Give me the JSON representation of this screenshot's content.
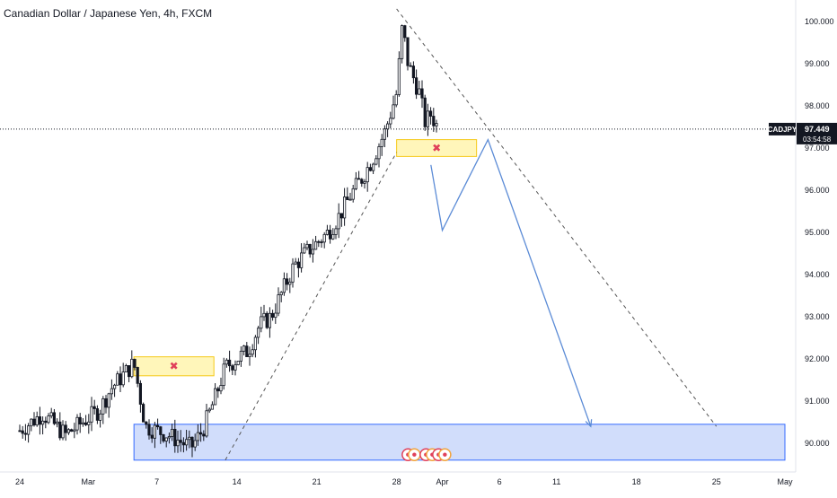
{
  "title": "Canadian Dollar / Japanese Yen, 4h, FXCM",
  "colors": {
    "bull": "#ffffff",
    "bear": "#131722",
    "support_zone_fill": "#cfdcfb",
    "support_zone_border": "#2962ff",
    "resistance_zone_fill": "#fff6b3",
    "resistance_zone_border": "#f5c400",
    "projection_line": "#5b8bd6",
    "trend_line": "#555555",
    "price_line": "#131722",
    "marker": "#e0405a"
  },
  "chart_data": {
    "type": "candlestick",
    "symbol": "CADJPY",
    "timeframe": "4h",
    "source": "FXCM",
    "x_tick_labels": [
      "24",
      "Mar",
      "7",
      "14",
      "21",
      "28",
      "Apr",
      "6",
      "11",
      "18",
      "25",
      "May"
    ],
    "x_tick_dates": [
      "2020-02-24",
      "2020-03-01",
      "2020-03-07",
      "2020-03-14",
      "2020-03-21",
      "2020-03-28",
      "2020-04-01",
      "2020-04-06",
      "2020-04-11",
      "2020-04-18",
      "2020-04-25",
      "2020-05-01"
    ],
    "y_tick_labels": [
      "90.000",
      "91.000",
      "92.000",
      "93.000",
      "94.000",
      "95.000",
      "96.000",
      "97.000",
      "98.000",
      "99.000",
      "100.000"
    ],
    "ylim": [
      89.5,
      100.3
    ],
    "current_price": {
      "symbol": "CADJPY",
      "price": "97.449",
      "countdown": "03:54:58",
      "value": 97.449
    },
    "series_close_path": [
      {
        "date": "2020-02-24",
        "close": 90.3
      },
      {
        "date": "2020-02-26",
        "close": 90.7
      },
      {
        "date": "2020-02-28",
        "close": 90.2
      },
      {
        "date": "2020-03-02",
        "close": 90.8
      },
      {
        "date": "2020-03-03",
        "close": 91.3
      },
      {
        "date": "2020-03-05",
        "close": 91.9
      },
      {
        "date": "2020-03-06",
        "close": 90.4
      },
      {
        "date": "2020-03-08",
        "close": 90.2
      },
      {
        "date": "2020-03-10",
        "close": 89.9
      },
      {
        "date": "2020-03-11",
        "close": 90.3
      },
      {
        "date": "2020-03-12",
        "close": 91.0
      },
      {
        "date": "2020-03-13",
        "close": 91.8
      },
      {
        "date": "2020-03-15",
        "close": 92.2
      },
      {
        "date": "2020-03-16",
        "close": 92.8
      },
      {
        "date": "2020-03-17",
        "close": 93.0
      },
      {
        "date": "2020-03-18",
        "close": 93.6
      },
      {
        "date": "2020-03-19",
        "close": 94.2
      },
      {
        "date": "2020-03-20",
        "close": 94.5
      },
      {
        "date": "2020-03-22",
        "close": 95.0
      },
      {
        "date": "2020-03-23",
        "close": 95.4
      },
      {
        "date": "2020-03-24",
        "close": 95.9
      },
      {
        "date": "2020-03-25",
        "close": 96.3
      },
      {
        "date": "2020-03-26",
        "close": 96.8
      },
      {
        "date": "2020-03-27",
        "close": 97.4
      },
      {
        "date": "2020-03-28",
        "close": 98.3
      },
      {
        "date": "2020-03-28T12:00",
        "close": 99.9
      },
      {
        "date": "2020-03-29",
        "close": 99.0
      },
      {
        "date": "2020-03-30",
        "close": 98.3
      },
      {
        "date": "2020-03-30T12:00",
        "close": 97.6
      },
      {
        "date": "2020-03-31",
        "close": 97.8
      },
      {
        "date": "2020-03-31T16:00",
        "close": 97.45
      }
    ],
    "zones": [
      {
        "name": "support",
        "y_range": [
          89.6,
          90.45
        ],
        "x_range": [
          "2020-03-05",
          "2020-05-01"
        ]
      },
      {
        "name": "resistance-left",
        "y_range": [
          91.6,
          92.05
        ],
        "x_range": [
          "2020-03-05",
          "2020-03-12"
        ]
      },
      {
        "name": "resistance-top",
        "y_range": [
          96.8,
          97.2
        ],
        "x_range": [
          "2020-03-28",
          "2020-04-04"
        ]
      }
    ],
    "projection": [
      {
        "date": "2020-03-31",
        "value": 96.6
      },
      {
        "date": "2020-04-01",
        "value": 95.05
      },
      {
        "date": "2020-04-05",
        "value": 97.2
      },
      {
        "date": "2020-04-14",
        "value": 90.4
      }
    ],
    "trend_lines": [
      {
        "from": {
          "date": "2020-03-13",
          "value": 89.6
        },
        "to": {
          "date": "2020-03-28",
          "value": 96.9
        }
      },
      {
        "from": {
          "date": "2020-03-28",
          "value": 100.3
        },
        "to": {
          "date": "2020-04-25",
          "value": 90.4
        }
      }
    ],
    "grid": false
  }
}
